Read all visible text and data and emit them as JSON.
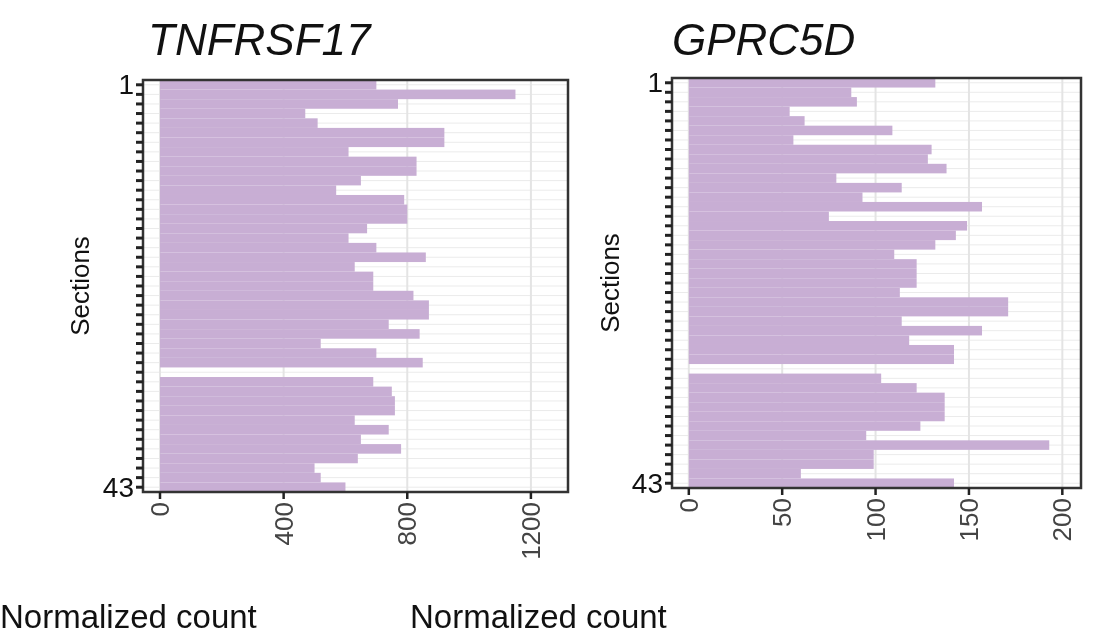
{
  "chart_data": [
    {
      "type": "bar",
      "orientation": "horizontal",
      "title": "TNFRSF17",
      "xlabel": "Normalized count",
      "ylabel": "Sections",
      "categories": [
        "1",
        null,
        null,
        null,
        null,
        null,
        null,
        null,
        null,
        null,
        null,
        null,
        null,
        null,
        null,
        null,
        null,
        null,
        null,
        null,
        null,
        null,
        null,
        null,
        null,
        null,
        null,
        null,
        null,
        null,
        null,
        null,
        null,
        null,
        null,
        null,
        null,
        null,
        null,
        null,
        null,
        null,
        "43"
      ],
      "values": [
        700,
        1150,
        770,
        470,
        510,
        920,
        920,
        610,
        830,
        830,
        650,
        570,
        790,
        800,
        800,
        670,
        610,
        700,
        860,
        630,
        690,
        690,
        820,
        870,
        870,
        740,
        840,
        520,
        700,
        850,
        0,
        690,
        750,
        760,
        760,
        630,
        740,
        650,
        780,
        640,
        500,
        520,
        600
      ],
      "color": "#c8aed4",
      "xlim": [
        -55,
        1320
      ],
      "xticks": [
        0,
        400,
        800,
        1200
      ],
      "grid": true
    },
    {
      "type": "bar",
      "orientation": "horizontal",
      "title": "GPRC5D",
      "xlabel": "Normalized count",
      "ylabel": "Sections",
      "categories": [
        "1",
        null,
        null,
        null,
        null,
        null,
        null,
        null,
        null,
        null,
        null,
        null,
        null,
        null,
        null,
        null,
        null,
        null,
        null,
        null,
        null,
        null,
        null,
        null,
        null,
        null,
        null,
        null,
        null,
        null,
        null,
        null,
        null,
        null,
        null,
        null,
        null,
        null,
        null,
        null,
        null,
        null,
        "43"
      ],
      "values": [
        132,
        87,
        90,
        54,
        62,
        109,
        56,
        130,
        128,
        138,
        79,
        114,
        93,
        157,
        75,
        149,
        143,
        132,
        110,
        122,
        122,
        122,
        113,
        171,
        171,
        114,
        157,
        118,
        142,
        142,
        0,
        103,
        122,
        137,
        137,
        137,
        124,
        95,
        193,
        99,
        99,
        60,
        142
      ],
      "color": "#c8aed4",
      "xlim": [
        -9,
        210
      ],
      "xticks": [
        0,
        50,
        100,
        150,
        200
      ],
      "grid": true
    }
  ]
}
